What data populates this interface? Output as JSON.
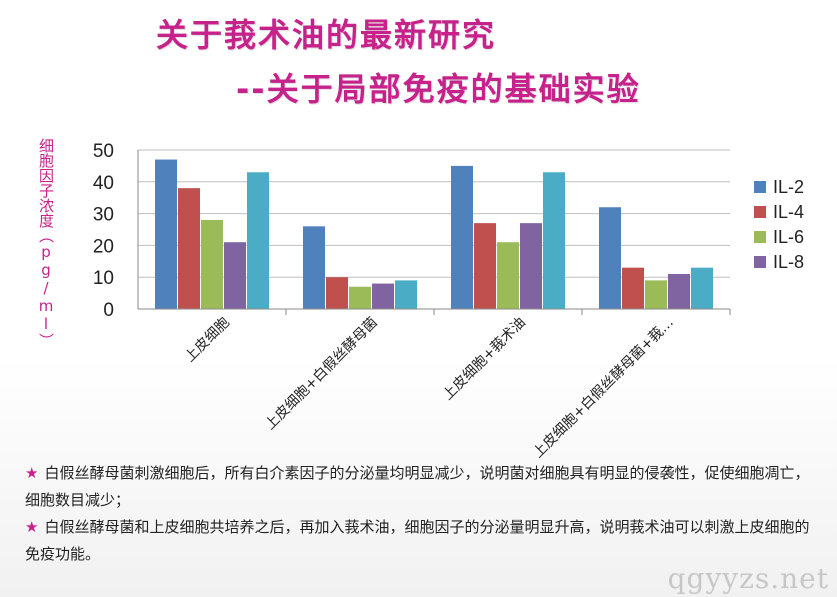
{
  "header": {
    "title": "关于莪术油的最新研究",
    "subtitle": "--关于局部免疫的基础实验"
  },
  "chart_data": {
    "type": "bar",
    "title": "",
    "ylabel": "细胞因子浓度（pg/ml）",
    "xlabel": "",
    "ylim": [
      0,
      50
    ],
    "yticks": [
      "0",
      "10",
      "20",
      "30",
      "40",
      "50"
    ],
    "grid": true,
    "legend_position": "right",
    "categories": [
      "上皮细胞",
      "上皮细胞+白假丝酵母菌",
      "上皮细胞+莪术油",
      "上皮细胞+白假丝酵母菌+莪…"
    ],
    "series": [
      {
        "name": "IL-2",
        "values": [
          47,
          26,
          45,
          32
        ],
        "color": "#4f81bd"
      },
      {
        "name": "IL-4",
        "values": [
          38,
          10,
          27,
          13
        ],
        "color": "#c0504d"
      },
      {
        "name": "IL-6",
        "values": [
          28,
          7,
          21,
          9
        ],
        "color": "#9bbb59"
      },
      {
        "name": "IL-8",
        "values": [
          21,
          8,
          27,
          11
        ],
        "color": "#8064a2"
      },
      {
        "name": "",
        "values": [
          43,
          9,
          43,
          13
        ],
        "color": "#4bacc6"
      }
    ]
  },
  "notes": {
    "star": "★",
    "line1": "白假丝酵母菌刺激细胞后，所有白介素因子的分泌量均明显减少，说明菌对细胞具有明显的侵袭性，促使细胞凋亡，细胞数目减少；",
    "line2": "白假丝酵母菌和上皮细胞共培养之后，再加入莪术油，细胞因子的分泌量明显升高，说明莪术油可以刺激上皮细胞的免疫功能。"
  },
  "watermark": "qgyyzs.net"
}
